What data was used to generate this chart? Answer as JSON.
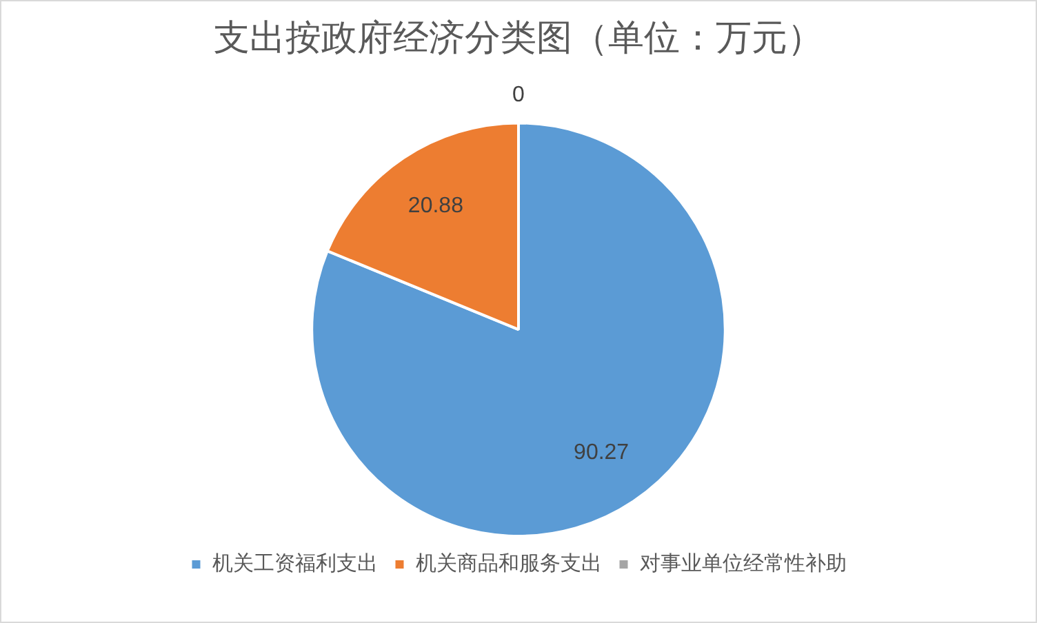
{
  "chart_data": {
    "type": "pie",
    "title": "支出按政府经济分类图（单位：万元）",
    "categories": [
      "机关工资福利支出",
      "机关商品和服务支出",
      "对事业单位经常性补助"
    ],
    "values": [
      90.27,
      20.88,
      0
    ],
    "colors": [
      "#5b9bd5",
      "#ed7d31",
      "#a5a5a5"
    ],
    "value_labels": [
      "90.27",
      "20.88",
      "0"
    ],
    "legend": "bottom"
  }
}
